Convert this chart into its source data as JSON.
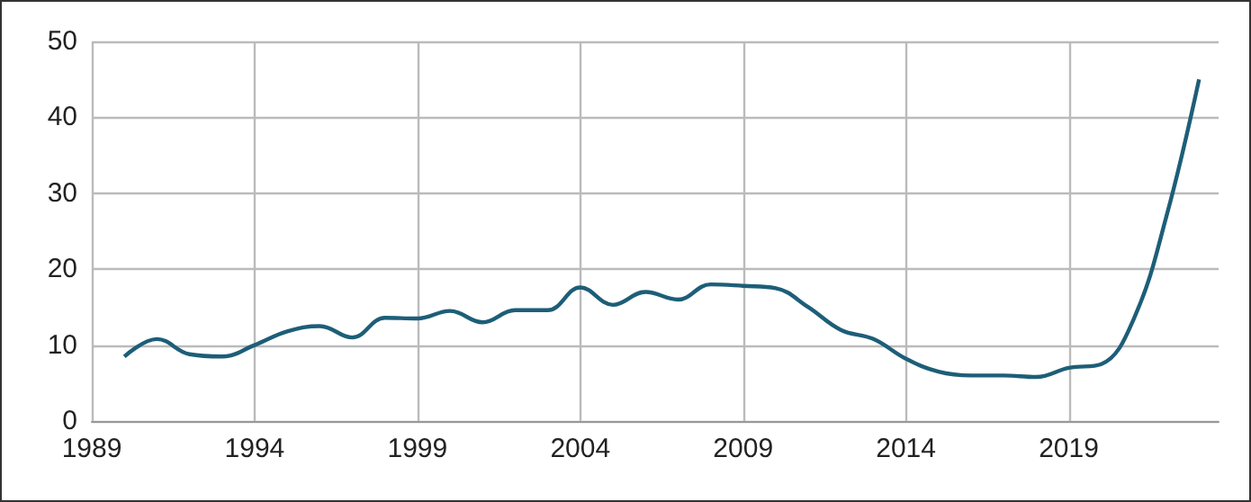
{
  "chart_data": {
    "type": "line",
    "x": [
      1990,
      1991,
      1992,
      1993,
      1994,
      1995,
      1996,
      1997,
      1998,
      1999,
      2000,
      2001,
      2002,
      2003,
      2004,
      2005,
      2006,
      2007,
      2008,
      2009,
      2010,
      2011,
      2012,
      2013,
      2014,
      2015,
      2016,
      2017,
      2018,
      2019,
      2020,
      2021,
      2022,
      2023
    ],
    "series": [
      {
        "color": "#1d5e78",
        "values": [
          8.5,
          10.8,
          8.8,
          8.5,
          10,
          11.8,
          12.5,
          11,
          13.6,
          13.5,
          14.5,
          13,
          14.6,
          14.6,
          17.6,
          15.3,
          17,
          16,
          18,
          17.8,
          17.5,
          15,
          12,
          10.8,
          8.2,
          6.5,
          6,
          6,
          5.8,
          7,
          7.5,
          13.5,
          27,
          45
        ]
      }
    ],
    "xlim": [
      1989,
      2023.6
    ],
    "xticks": [
      1989,
      1994,
      1999,
      2004,
      2009,
      2014,
      2019
    ],
    "ylim": [
      0,
      50
    ],
    "yticks": [
      0,
      10,
      20,
      30,
      40,
      50
    ],
    "grid": true,
    "marker": "none",
    "line_style": "solid"
  }
}
